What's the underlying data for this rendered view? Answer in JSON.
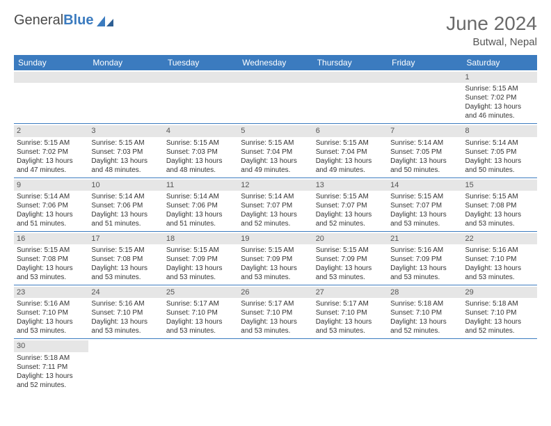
{
  "logo": {
    "text_gray": "General",
    "text_blue": "Blue"
  },
  "title": "June 2024",
  "location": "Butwal, Nepal",
  "colors": {
    "header_bg": "#3b7bbf",
    "header_text": "#ffffff",
    "daynum_bg": "#e6e6e6",
    "cell_border": "#3b7bbf",
    "body_text": "#333333",
    "title_text": "#6a6a6a"
  },
  "day_headers": [
    "Sunday",
    "Monday",
    "Tuesday",
    "Wednesday",
    "Thursday",
    "Friday",
    "Saturday"
  ],
  "weeks": [
    [
      null,
      null,
      null,
      null,
      null,
      null,
      {
        "n": "1",
        "sunrise": "5:15 AM",
        "sunset": "7:02 PM",
        "daylight": "13 hours and 46 minutes."
      }
    ],
    [
      {
        "n": "2",
        "sunrise": "5:15 AM",
        "sunset": "7:02 PM",
        "daylight": "13 hours and 47 minutes."
      },
      {
        "n": "3",
        "sunrise": "5:15 AM",
        "sunset": "7:03 PM",
        "daylight": "13 hours and 48 minutes."
      },
      {
        "n": "4",
        "sunrise": "5:15 AM",
        "sunset": "7:03 PM",
        "daylight": "13 hours and 48 minutes."
      },
      {
        "n": "5",
        "sunrise": "5:15 AM",
        "sunset": "7:04 PM",
        "daylight": "13 hours and 49 minutes."
      },
      {
        "n": "6",
        "sunrise": "5:15 AM",
        "sunset": "7:04 PM",
        "daylight": "13 hours and 49 minutes."
      },
      {
        "n": "7",
        "sunrise": "5:14 AM",
        "sunset": "7:05 PM",
        "daylight": "13 hours and 50 minutes."
      },
      {
        "n": "8",
        "sunrise": "5:14 AM",
        "sunset": "7:05 PM",
        "daylight": "13 hours and 50 minutes."
      }
    ],
    [
      {
        "n": "9",
        "sunrise": "5:14 AM",
        "sunset": "7:06 PM",
        "daylight": "13 hours and 51 minutes."
      },
      {
        "n": "10",
        "sunrise": "5:14 AM",
        "sunset": "7:06 PM",
        "daylight": "13 hours and 51 minutes."
      },
      {
        "n": "11",
        "sunrise": "5:14 AM",
        "sunset": "7:06 PM",
        "daylight": "13 hours and 51 minutes."
      },
      {
        "n": "12",
        "sunrise": "5:14 AM",
        "sunset": "7:07 PM",
        "daylight": "13 hours and 52 minutes."
      },
      {
        "n": "13",
        "sunrise": "5:15 AM",
        "sunset": "7:07 PM",
        "daylight": "13 hours and 52 minutes."
      },
      {
        "n": "14",
        "sunrise": "5:15 AM",
        "sunset": "7:07 PM",
        "daylight": "13 hours and 53 minutes."
      },
      {
        "n": "15",
        "sunrise": "5:15 AM",
        "sunset": "7:08 PM",
        "daylight": "13 hours and 53 minutes."
      }
    ],
    [
      {
        "n": "16",
        "sunrise": "5:15 AM",
        "sunset": "7:08 PM",
        "daylight": "13 hours and 53 minutes."
      },
      {
        "n": "17",
        "sunrise": "5:15 AM",
        "sunset": "7:08 PM",
        "daylight": "13 hours and 53 minutes."
      },
      {
        "n": "18",
        "sunrise": "5:15 AM",
        "sunset": "7:09 PM",
        "daylight": "13 hours and 53 minutes."
      },
      {
        "n": "19",
        "sunrise": "5:15 AM",
        "sunset": "7:09 PM",
        "daylight": "13 hours and 53 minutes."
      },
      {
        "n": "20",
        "sunrise": "5:15 AM",
        "sunset": "7:09 PM",
        "daylight": "13 hours and 53 minutes."
      },
      {
        "n": "21",
        "sunrise": "5:16 AM",
        "sunset": "7:09 PM",
        "daylight": "13 hours and 53 minutes."
      },
      {
        "n": "22",
        "sunrise": "5:16 AM",
        "sunset": "7:10 PM",
        "daylight": "13 hours and 53 minutes."
      }
    ],
    [
      {
        "n": "23",
        "sunrise": "5:16 AM",
        "sunset": "7:10 PM",
        "daylight": "13 hours and 53 minutes."
      },
      {
        "n": "24",
        "sunrise": "5:16 AM",
        "sunset": "7:10 PM",
        "daylight": "13 hours and 53 minutes."
      },
      {
        "n": "25",
        "sunrise": "5:17 AM",
        "sunset": "7:10 PM",
        "daylight": "13 hours and 53 minutes."
      },
      {
        "n": "26",
        "sunrise": "5:17 AM",
        "sunset": "7:10 PM",
        "daylight": "13 hours and 53 minutes."
      },
      {
        "n": "27",
        "sunrise": "5:17 AM",
        "sunset": "7:10 PM",
        "daylight": "13 hours and 53 minutes."
      },
      {
        "n": "28",
        "sunrise": "5:18 AM",
        "sunset": "7:10 PM",
        "daylight": "13 hours and 52 minutes."
      },
      {
        "n": "29",
        "sunrise": "5:18 AM",
        "sunset": "7:10 PM",
        "daylight": "13 hours and 52 minutes."
      }
    ],
    [
      {
        "n": "30",
        "sunrise": "5:18 AM",
        "sunset": "7:11 PM",
        "daylight": "13 hours and 52 minutes."
      },
      null,
      null,
      null,
      null,
      null,
      null
    ]
  ],
  "labels": {
    "sunrise_prefix": "Sunrise: ",
    "sunset_prefix": "Sunset: ",
    "daylight_prefix": "Daylight: "
  }
}
